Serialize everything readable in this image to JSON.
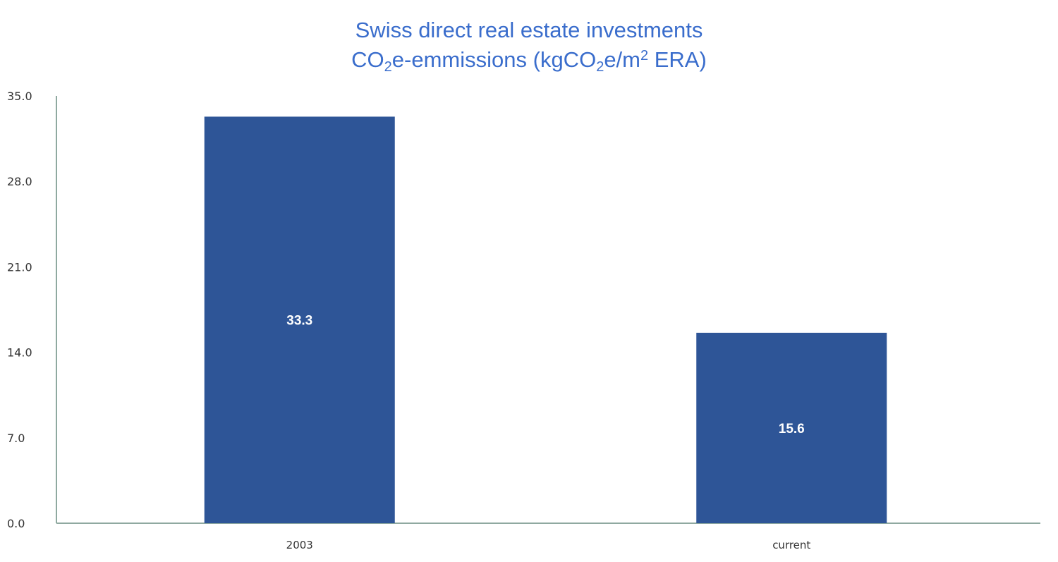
{
  "chart_data": {
    "type": "bar",
    "title_line1": "Swiss direct real estate investments",
    "title_line2": {
      "a": "CO",
      "sub1": "2",
      "b": "e-emmissions (kgCO",
      "sub2": "2",
      "c": "e/m",
      "sup": "2",
      "d": " ERA)"
    },
    "categories": [
      "2003",
      "current"
    ],
    "values": [
      33.3,
      15.6
    ],
    "data_labels": [
      "33.3",
      "15.6"
    ],
    "ylim": [
      0,
      35
    ],
    "yticks": [
      "0.0",
      "7.0",
      "14.0",
      "21.0",
      "28.0",
      "35.0"
    ],
    "xlabel": "",
    "ylabel": "",
    "grid": false,
    "colors": {
      "bar": "#2e5597",
      "title": "#3a6dcc",
      "axis": "#8fa9a0"
    }
  }
}
